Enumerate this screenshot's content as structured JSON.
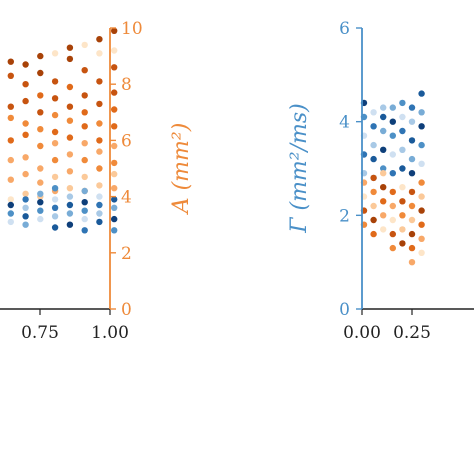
{
  "colors": {
    "orange_axis": "#ee8a3a",
    "blue_axis": "#4a90c8",
    "tick_text": "#222222",
    "orange_shades": [
      "#fde5c8",
      "#fbc999",
      "#f8a868",
      "#f08a3a",
      "#e06a1a",
      "#c75410",
      "#a84208"
    ],
    "blue_shades": [
      "#cfe0f1",
      "#a8c9e6",
      "#78acd6",
      "#4d90c6",
      "#2f74b4",
      "#1a5a9a",
      "#0e3f7a"
    ],
    "accent_green": "#2f9a3a",
    "accent_dark": "#333333"
  },
  "chart_data": [
    {
      "type": "scatter",
      "panel": "left",
      "x_ticks": [
        "0.75",
        "1.00"
      ],
      "xlim": [
        0.55,
        1.0
      ],
      "y_right_ticks": [
        "0",
        "2",
        "4",
        "6",
        "8",
        "10"
      ],
      "y_right_lim": [
        0,
        10
      ],
      "y_right_label": "A (mm²)",
      "series": [
        {
          "color_group": "orange",
          "points": [
            {
              "x": 0.6,
              "y": 3.9
            },
            {
              "x": 0.6,
              "y": 4.6
            },
            {
              "x": 0.6,
              "y": 5.3
            },
            {
              "x": 0.6,
              "y": 6.0
            },
            {
              "x": 0.6,
              "y": 6.8
            },
            {
              "x": 0.6,
              "y": 7.2
            },
            {
              "x": 0.6,
              "y": 8.3
            },
            {
              "x": 0.6,
              "y": 8.8
            },
            {
              "x": 0.65,
              "y": 4.1
            },
            {
              "x": 0.65,
              "y": 4.8
            },
            {
              "x": 0.65,
              "y": 5.4
            },
            {
              "x": 0.65,
              "y": 6.2
            },
            {
              "x": 0.65,
              "y": 6.6
            },
            {
              "x": 0.65,
              "y": 7.4
            },
            {
              "x": 0.65,
              "y": 8.0
            },
            {
              "x": 0.65,
              "y": 8.7
            },
            {
              "x": 0.7,
              "y": 4.0
            },
            {
              "x": 0.7,
              "y": 4.5
            },
            {
              "x": 0.7,
              "y": 5.0
            },
            {
              "x": 0.7,
              "y": 5.8
            },
            {
              "x": 0.7,
              "y": 6.4
            },
            {
              "x": 0.7,
              "y": 7.0
            },
            {
              "x": 0.7,
              "y": 7.6
            },
            {
              "x": 0.7,
              "y": 8.4
            },
            {
              "x": 0.7,
              "y": 9.0
            },
            {
              "x": 0.75,
              "y": 4.2
            },
            {
              "x": 0.75,
              "y": 4.7
            },
            {
              "x": 0.75,
              "y": 5.3
            },
            {
              "x": 0.75,
              "y": 5.9
            },
            {
              "x": 0.75,
              "y": 6.3
            },
            {
              "x": 0.75,
              "y": 6.9
            },
            {
              "x": 0.75,
              "y": 7.5
            },
            {
              "x": 0.75,
              "y": 8.1
            },
            {
              "x": 0.75,
              "y": 9.1
            },
            {
              "x": 0.8,
              "y": 4.3
            },
            {
              "x": 0.8,
              "y": 4.9
            },
            {
              "x": 0.8,
              "y": 5.5
            },
            {
              "x": 0.8,
              "y": 6.1
            },
            {
              "x": 0.8,
              "y": 6.7
            },
            {
              "x": 0.8,
              "y": 7.2
            },
            {
              "x": 0.8,
              "y": 7.9
            },
            {
              "x": 0.8,
              "y": 8.9
            },
            {
              "x": 0.8,
              "y": 9.3
            },
            {
              "x": 0.85,
              "y": 4.2
            },
            {
              "x": 0.85,
              "y": 4.7
            },
            {
              "x": 0.85,
              "y": 5.3
            },
            {
              "x": 0.85,
              "y": 5.9
            },
            {
              "x": 0.85,
              "y": 6.5
            },
            {
              "x": 0.85,
              "y": 7.0
            },
            {
              "x": 0.85,
              "y": 7.6
            },
            {
              "x": 0.85,
              "y": 8.5
            },
            {
              "x": 0.85,
              "y": 9.4
            },
            {
              "x": 0.9,
              "y": 4.4
            },
            {
              "x": 0.9,
              "y": 5.0
            },
            {
              "x": 0.9,
              "y": 5.6
            },
            {
              "x": 0.9,
              "y": 6.0
            },
            {
              "x": 0.9,
              "y": 6.6
            },
            {
              "x": 0.9,
              "y": 7.3
            },
            {
              "x": 0.9,
              "y": 8.1
            },
            {
              "x": 0.9,
              "y": 9.1
            },
            {
              "x": 0.9,
              "y": 9.6
            },
            {
              "x": 0.95,
              "y": 4.3
            },
            {
              "x": 0.95,
              "y": 4.8
            },
            {
              "x": 0.95,
              "y": 5.2
            },
            {
              "x": 0.95,
              "y": 5.8
            },
            {
              "x": 0.95,
              "y": 6.5
            },
            {
              "x": 0.95,
              "y": 7.1
            },
            {
              "x": 0.95,
              "y": 7.7
            },
            {
              "x": 0.95,
              "y": 8.6
            },
            {
              "x": 0.95,
              "y": 9.2
            },
            {
              "x": 0.95,
              "y": 9.9
            }
          ]
        },
        {
          "color_group": "blue",
          "points": [
            {
              "x": 0.6,
              "y": 3.1
            },
            {
              "x": 0.6,
              "y": 3.4
            },
            {
              "x": 0.6,
              "y": 3.7
            },
            {
              "x": 0.65,
              "y": 3.0
            },
            {
              "x": 0.65,
              "y": 3.3
            },
            {
              "x": 0.65,
              "y": 3.6
            },
            {
              "x": 0.65,
              "y": 3.9
            },
            {
              "x": 0.7,
              "y": 3.2
            },
            {
              "x": 0.7,
              "y": 3.5
            },
            {
              "x": 0.7,
              "y": 3.8
            },
            {
              "x": 0.7,
              "y": 4.1
            },
            {
              "x": 0.75,
              "y": 2.9
            },
            {
              "x": 0.75,
              "y": 3.3
            },
            {
              "x": 0.75,
              "y": 3.6
            },
            {
              "x": 0.75,
              "y": 3.9
            },
            {
              "x": 0.75,
              "y": 4.3
            },
            {
              "x": 0.8,
              "y": 3.0
            },
            {
              "x": 0.8,
              "y": 3.4
            },
            {
              "x": 0.8,
              "y": 3.7
            },
            {
              "x": 0.8,
              "y": 4.0
            },
            {
              "x": 0.85,
              "y": 2.8
            },
            {
              "x": 0.85,
              "y": 3.2
            },
            {
              "x": 0.85,
              "y": 3.5
            },
            {
              "x": 0.85,
              "y": 3.8
            },
            {
              "x": 0.85,
              "y": 4.2
            },
            {
              "x": 0.9,
              "y": 3.1
            },
            {
              "x": 0.9,
              "y": 3.4
            },
            {
              "x": 0.9,
              "y": 3.7
            },
            {
              "x": 0.9,
              "y": 4.0
            },
            {
              "x": 0.95,
              "y": 2.8
            },
            {
              "x": 0.95,
              "y": 3.2
            },
            {
              "x": 0.95,
              "y": 3.6
            },
            {
              "x": 0.95,
              "y": 3.9
            }
          ]
        }
      ]
    },
    {
      "type": "scatter",
      "panel": "right",
      "x_ticks": [
        "0.00",
        "0.25"
      ],
      "xlim": [
        0.0,
        0.33
      ],
      "y_left_ticks": [
        "0",
        "2",
        "4",
        "6"
      ],
      "y_left_lim": [
        0,
        6
      ],
      "y_left_label": "Γ (mm²/ms)",
      "series": [
        {
          "color_group": "blue",
          "points": [
            {
              "x": 0.0,
              "y": 2.9
            },
            {
              "x": 0.0,
              "y": 3.3
            },
            {
              "x": 0.0,
              "y": 3.7
            },
            {
              "x": 0.0,
              "y": 4.1
            },
            {
              "x": 0.0,
              "y": 4.4
            },
            {
              "x": 0.05,
              "y": 2.8
            },
            {
              "x": 0.05,
              "y": 3.2
            },
            {
              "x": 0.05,
              "y": 3.5
            },
            {
              "x": 0.05,
              "y": 3.9
            },
            {
              "x": 0.05,
              "y": 4.2
            },
            {
              "x": 0.1,
              "y": 3.0
            },
            {
              "x": 0.1,
              "y": 3.4
            },
            {
              "x": 0.1,
              "y": 3.8
            },
            {
              "x": 0.1,
              "y": 4.1
            },
            {
              "x": 0.1,
              "y": 4.3
            },
            {
              "x": 0.15,
              "y": 2.9
            },
            {
              "x": 0.15,
              "y": 3.3
            },
            {
              "x": 0.15,
              "y": 3.7
            },
            {
              "x": 0.15,
              "y": 4.0
            },
            {
              "x": 0.15,
              "y": 4.3
            },
            {
              "x": 0.2,
              "y": 3.0
            },
            {
              "x": 0.2,
              "y": 3.4
            },
            {
              "x": 0.2,
              "y": 3.8
            },
            {
              "x": 0.2,
              "y": 4.1
            },
            {
              "x": 0.2,
              "y": 4.4
            },
            {
              "x": 0.25,
              "y": 2.9
            },
            {
              "x": 0.25,
              "y": 3.2
            },
            {
              "x": 0.25,
              "y": 3.6
            },
            {
              "x": 0.25,
              "y": 4.0
            },
            {
              "x": 0.25,
              "y": 4.3
            },
            {
              "x": 0.3,
              "y": 3.1
            },
            {
              "x": 0.3,
              "y": 3.5
            },
            {
              "x": 0.3,
              "y": 3.9
            },
            {
              "x": 0.3,
              "y": 4.2
            },
            {
              "x": 0.3,
              "y": 4.6
            }
          ]
        },
        {
          "color_group": "orange",
          "points": [
            {
              "x": 0.0,
              "y": 1.8
            },
            {
              "x": 0.0,
              "y": 2.1
            },
            {
              "x": 0.0,
              "y": 2.4
            },
            {
              "x": 0.0,
              "y": 2.7
            },
            {
              "x": 0.05,
              "y": 1.6
            },
            {
              "x": 0.05,
              "y": 1.9
            },
            {
              "x": 0.05,
              "y": 2.2
            },
            {
              "x": 0.05,
              "y": 2.5
            },
            {
              "x": 0.05,
              "y": 2.8
            },
            {
              "x": 0.1,
              "y": 1.7
            },
            {
              "x": 0.1,
              "y": 2.0
            },
            {
              "x": 0.1,
              "y": 2.3
            },
            {
              "x": 0.1,
              "y": 2.6
            },
            {
              "x": 0.1,
              "y": 2.9
            },
            {
              "x": 0.15,
              "y": 1.3
            },
            {
              "x": 0.15,
              "y": 1.6
            },
            {
              "x": 0.15,
              "y": 1.9
            },
            {
              "x": 0.15,
              "y": 2.2
            },
            {
              "x": 0.15,
              "y": 2.5
            },
            {
              "x": 0.2,
              "y": 1.4
            },
            {
              "x": 0.2,
              "y": 1.7
            },
            {
              "x": 0.2,
              "y": 2.0
            },
            {
              "x": 0.2,
              "y": 2.3
            },
            {
              "x": 0.2,
              "y": 2.6
            },
            {
              "x": 0.25,
              "y": 1.0
            },
            {
              "x": 0.25,
              "y": 1.3
            },
            {
              "x": 0.25,
              "y": 1.6
            },
            {
              "x": 0.25,
              "y": 1.9
            },
            {
              "x": 0.25,
              "y": 2.2
            },
            {
              "x": 0.25,
              "y": 2.5
            },
            {
              "x": 0.3,
              "y": 1.2
            },
            {
              "x": 0.3,
              "y": 1.5
            },
            {
              "x": 0.3,
              "y": 1.8
            },
            {
              "x": 0.3,
              "y": 2.1
            },
            {
              "x": 0.3,
              "y": 2.4
            },
            {
              "x": 0.3,
              "y": 2.7
            }
          ]
        }
      ]
    }
  ]
}
